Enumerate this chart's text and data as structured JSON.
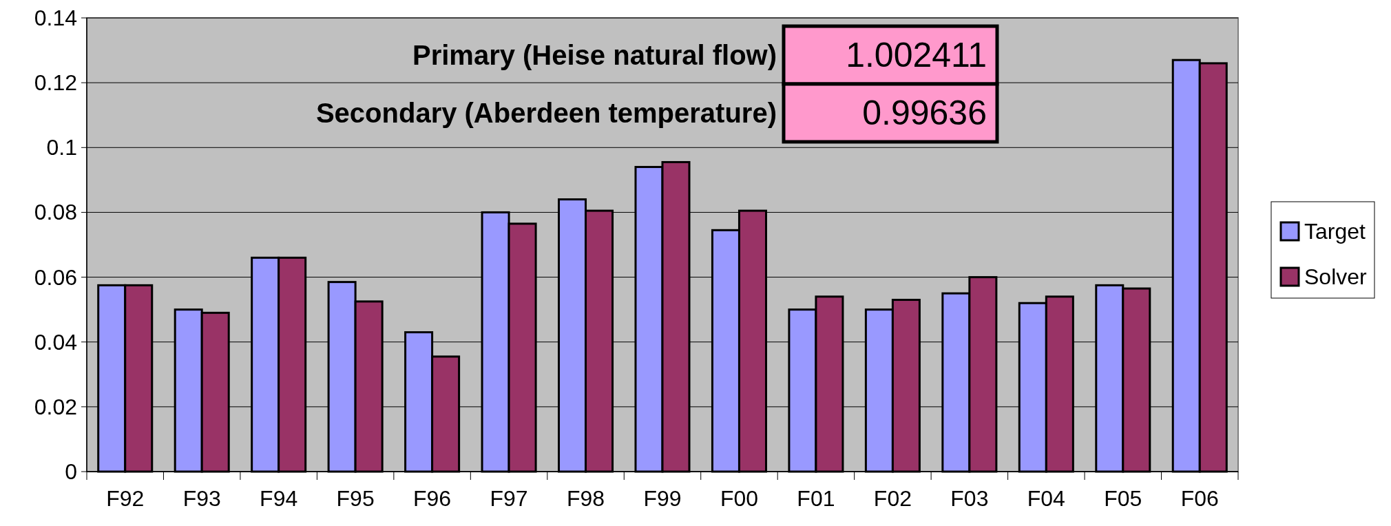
{
  "chart_data": {
    "type": "bar",
    "categories": [
      "F92",
      "F93",
      "F94",
      "F95",
      "F96",
      "F97",
      "F98",
      "F99",
      "F00",
      "F01",
      "F02",
      "F03",
      "F04",
      "F05",
      "F06"
    ],
    "series": [
      {
        "name": "Target",
        "color": "#9999ff",
        "values": [
          0.0575,
          0.05,
          0.066,
          0.0585,
          0.043,
          0.08,
          0.084,
          0.094,
          0.0745,
          0.05,
          0.05,
          0.055,
          0.052,
          0.0575,
          0.127
        ]
      },
      {
        "name": "Solver",
        "color": "#993366",
        "values": [
          0.0575,
          0.049,
          0.066,
          0.0525,
          0.0355,
          0.0765,
          0.0805,
          0.0955,
          0.0805,
          0.054,
          0.053,
          0.06,
          0.054,
          0.0565,
          0.126
        ]
      }
    ],
    "ylim": [
      0,
      0.14
    ],
    "yticks": [
      0,
      {
        "value": 0.02,
        "label": "0.02"
      },
      {
        "value": 0.04,
        "label": "0.04"
      },
      {
        "value": 0.06,
        "label": "0.06"
      },
      {
        "value": 0.08,
        "label": "0.08"
      },
      {
        "value": 0.1,
        "label": "0.1"
      },
      {
        "value": 0.12,
        "label": "0.12"
      },
      {
        "value": 0.14,
        "label": "0.14"
      }
    ],
    "grid": "y",
    "legend": "right",
    "annotations": [
      "Primary (Heise natural flow)",
      "1.002411",
      "Secondary (Aberdeen temperature)",
      "0.99636"
    ]
  }
}
